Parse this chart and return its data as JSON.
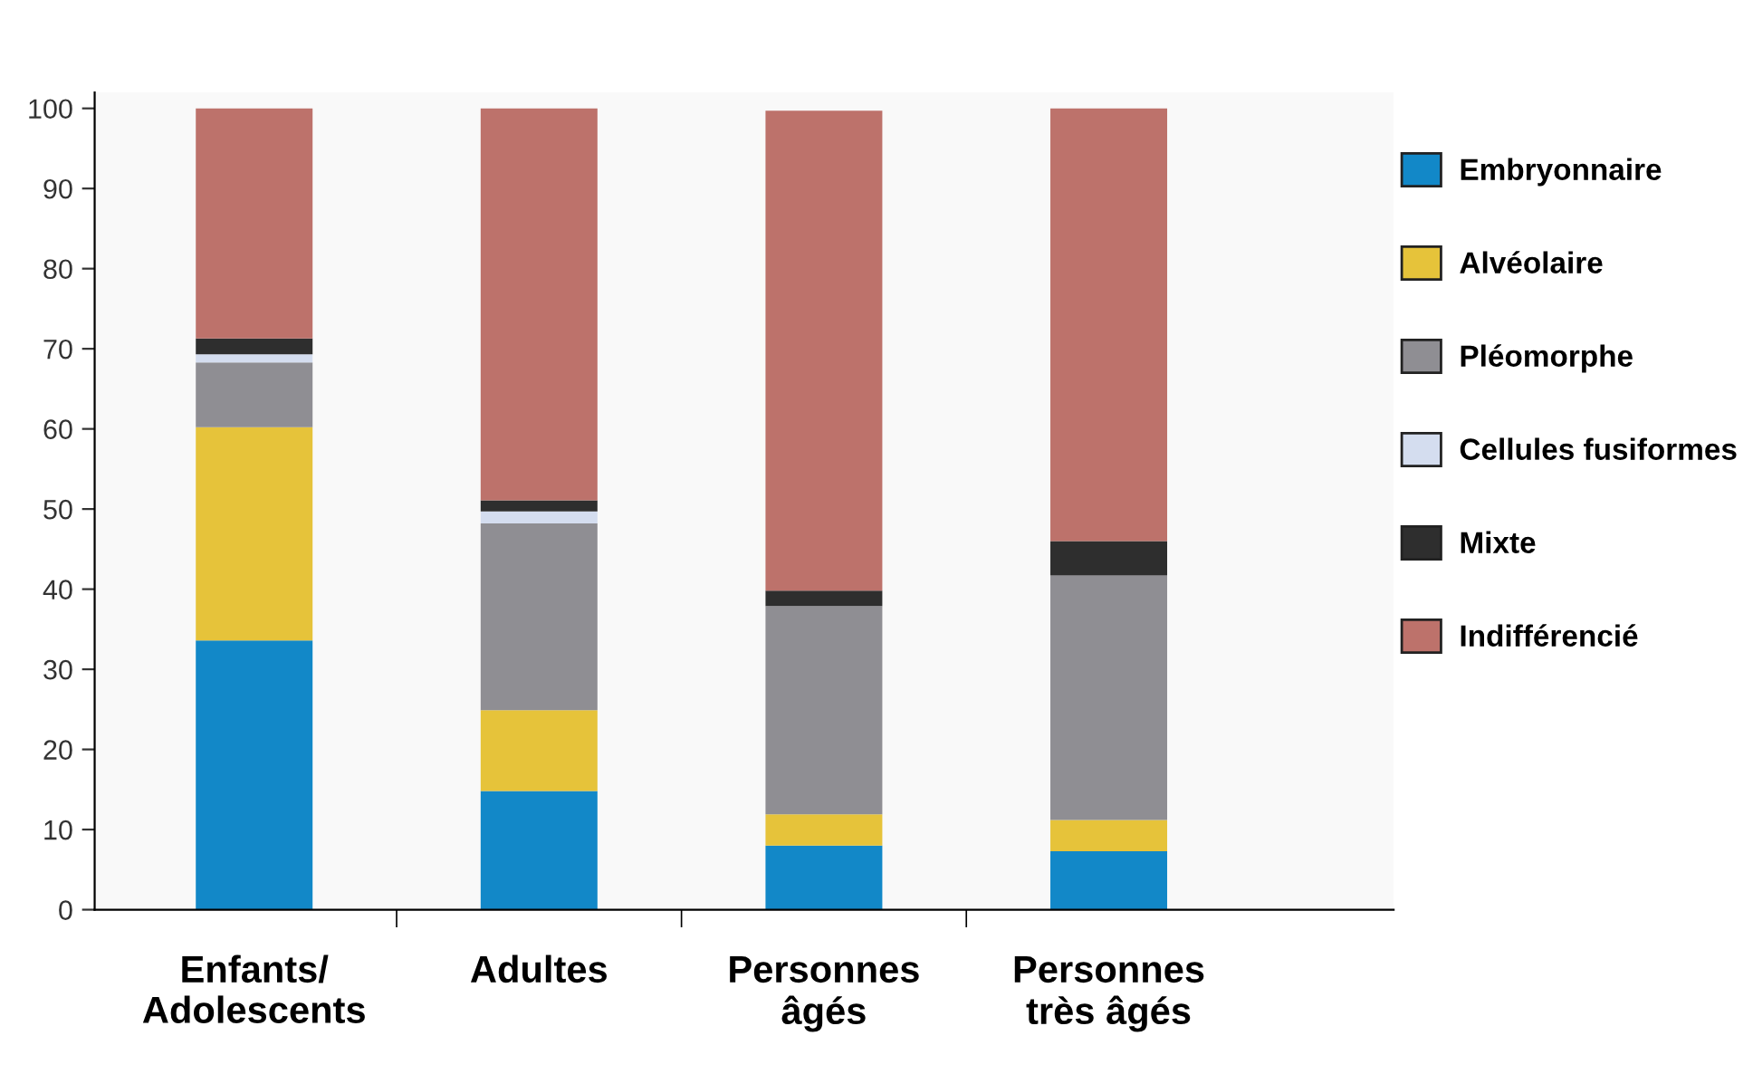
{
  "chart_data": {
    "type": "bar",
    "stacked": true,
    "categories": [
      "Enfants/\nAdolescents",
      "Adultes",
      "Personnes\nâgés",
      "Personnes\ntrès âgés"
    ],
    "series": [
      {
        "name": "Embryonnaire",
        "color": "#1288c8",
        "values": [
          33.6,
          14.8,
          8.0,
          7.3
        ]
      },
      {
        "name": "Alvéolaire",
        "color": "#e6c33a",
        "values": [
          26.6,
          10.1,
          3.9,
          3.9
        ]
      },
      {
        "name": "Pléomorphe",
        "color": "#8f8e93",
        "values": [
          8.1,
          23.3,
          26.0,
          30.5
        ]
      },
      {
        "name": "Cellules fusiformes",
        "color": "#d4ddef",
        "values": [
          1.0,
          1.5,
          null,
          0
        ]
      },
      {
        "name": "Mixte",
        "color": "#2e2e2e",
        "values": [
          2.0,
          1.4,
          1.9,
          4.3
        ]
      },
      {
        "name": "Indifférencié",
        "color": "#bd726b",
        "values": [
          28.7,
          48.9,
          59.9,
          54.0
        ]
      }
    ],
    "ylim": [
      0,
      102
    ],
    "yticks": [
      0,
      10,
      20,
      30,
      40,
      50,
      60,
      70,
      80,
      90,
      100
    ],
    "grid": false,
    "legend": "right"
  }
}
